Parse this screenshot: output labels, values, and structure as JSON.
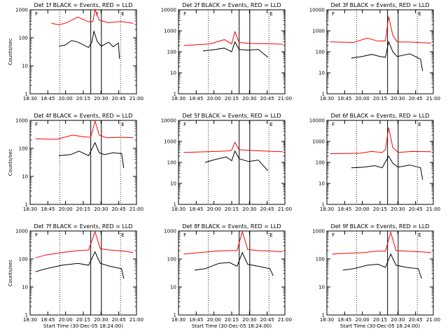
{
  "chart_data": [
    {
      "type": "line",
      "title": "Det 1f BLACK = Events, RED = LLD",
      "xlabel": "",
      "ylabel": "Counts/sec",
      "flags": [
        "F",
        "F",
        "E"
      ],
      "yscale": "log",
      "ylim": [
        1,
        1000
      ],
      "xlim": [
        "18:30",
        "21:00"
      ],
      "xticks": [
        "18:30",
        "18:45",
        "20:00",
        "20:15",
        "20:30",
        "20:45",
        "21:00"
      ],
      "yticks": [
        "1",
        "10",
        "100",
        "1000"
      ],
      "grid": false,
      "series": [
        {
          "color": "#ff0000",
          "values": [
            [
              0.2,
              330
            ],
            [
              0.27,
              290
            ],
            [
              0.34,
              340
            ],
            [
              0.45,
              550
            ],
            [
              0.55,
              370
            ],
            [
              0.59,
              380
            ],
            [
              0.61,
              1000
            ],
            [
              0.65,
              430
            ],
            [
              0.73,
              350
            ],
            [
              0.86,
              380
            ],
            [
              0.97,
              330
            ]
          ]
        },
        {
          "color": "#000000",
          "values": [
            [
              0.27,
              50
            ],
            [
              0.33,
              55
            ],
            [
              0.39,
              80
            ],
            [
              0.45,
              70
            ],
            [
              0.55,
              45
            ],
            [
              0.58,
              70
            ],
            [
              0.6,
              170
            ],
            [
              0.63,
              75
            ],
            [
              0.67,
              50
            ],
            [
              0.74,
              70
            ],
            [
              0.78,
              48
            ],
            [
              0.83,
              65
            ],
            [
              0.84,
              18
            ]
          ]
        }
      ]
    },
    {
      "type": "line",
      "title": "Det 2f BLACK = Events, RED = LLD",
      "xlabel": "",
      "ylabel": "",
      "flags": [
        "F",
        "E"
      ],
      "yscale": "log",
      "ylim": [
        1,
        10000
      ],
      "xlim": [
        "18:30",
        "21:00"
      ],
      "xticks": [
        "18:30",
        "18:45",
        "20:00",
        "20:15",
        "20:30",
        "20:45",
        "21:00"
      ],
      "yticks": [
        "1",
        "10",
        "100",
        "1000",
        "10000"
      ],
      "grid": false,
      "series": [
        {
          "color": "#ff0000",
          "values": [
            [
              0.05,
              200
            ],
            [
              0.3,
              240
            ],
            [
              0.43,
              380
            ],
            [
              0.5,
              240
            ],
            [
              0.53,
              900
            ],
            [
              0.57,
              280
            ],
            [
              0.68,
              250
            ],
            [
              0.88,
              240
            ],
            [
              0.98,
              230
            ]
          ]
        },
        {
          "color": "#000000",
          "values": [
            [
              0.23,
              110
            ],
            [
              0.35,
              130
            ],
            [
              0.43,
              150
            ],
            [
              0.5,
              100
            ],
            [
              0.53,
              300
            ],
            [
              0.57,
              130
            ],
            [
              0.65,
              120
            ],
            [
              0.75,
              130
            ],
            [
              0.84,
              55
            ]
          ]
        }
      ]
    },
    {
      "type": "line",
      "title": "Det 3f BLACK = Events, RED = LLD",
      "xlabel": "",
      "ylabel": "",
      "flags": [
        "F",
        "E"
      ],
      "yscale": "log",
      "ylim": [
        1,
        10000
      ],
      "xlim": [
        "18:30",
        "21:00"
      ],
      "xticks": [
        "18:30",
        "18:45",
        "20:00",
        "20:15",
        "20:30",
        "20:45",
        "21:00"
      ],
      "yticks": [
        "1",
        "10",
        "100",
        "1000",
        "10000"
      ],
      "grid": false,
      "series": [
        {
          "color": "#ff0000",
          "values": [
            [
              0.03,
              300
            ],
            [
              0.25,
              280
            ],
            [
              0.38,
              450
            ],
            [
              0.48,
              320
            ],
            [
              0.55,
              330
            ],
            [
              0.58,
              4800
            ],
            [
              0.62,
              600
            ],
            [
              0.66,
              300
            ],
            [
              0.8,
              290
            ],
            [
              0.98,
              260
            ]
          ]
        },
        {
          "color": "#000000",
          "values": [
            [
              0.23,
              50
            ],
            [
              0.33,
              60
            ],
            [
              0.42,
              75
            ],
            [
              0.5,
              60
            ],
            [
              0.55,
              55
            ],
            [
              0.58,
              300
            ],
            [
              0.62,
              100
            ],
            [
              0.66,
              60
            ],
            [
              0.78,
              80
            ],
            [
              0.88,
              45
            ],
            [
              0.9,
              12
            ]
          ]
        }
      ]
    },
    {
      "type": "line",
      "title": "Det 4f BLACK = Events, RED = LLD",
      "xlabel": "",
      "ylabel": "Counts/sec",
      "flags": [
        "F",
        "E"
      ],
      "yscale": "log",
      "ylim": [
        1,
        1000
      ],
      "xlim": [
        "18:30",
        "21:00"
      ],
      "xticks": [
        "18:30",
        "18:45",
        "20:00",
        "20:15",
        "20:30",
        "20:45",
        "21:00"
      ],
      "yticks": [
        "1",
        "10",
        "100",
        "1000"
      ],
      "grid": false,
      "series": [
        {
          "color": "#ff0000",
          "values": [
            [
              0.05,
              220
            ],
            [
              0.25,
              210
            ],
            [
              0.4,
              300
            ],
            [
              0.5,
              260
            ],
            [
              0.57,
              250
            ],
            [
              0.61,
              950
            ],
            [
              0.65,
              300
            ],
            [
              0.72,
              240
            ],
            [
              0.85,
              250
            ],
            [
              0.97,
              240
            ]
          ]
        },
        {
          "color": "#000000",
          "values": [
            [
              0.27,
              55
            ],
            [
              0.38,
              60
            ],
            [
              0.46,
              80
            ],
            [
              0.55,
              55
            ],
            [
              0.61,
              160
            ],
            [
              0.65,
              70
            ],
            [
              0.7,
              60
            ],
            [
              0.78,
              70
            ],
            [
              0.86,
              65
            ],
            [
              0.88,
              20
            ]
          ]
        }
      ]
    },
    {
      "type": "line",
      "title": "Det 5f BLACK = Events, RED = LLD",
      "xlabel": "",
      "ylabel": "",
      "flags": [
        "F",
        "E"
      ],
      "yscale": "log",
      "ylim": [
        1,
        10000
      ],
      "xlim": [
        "18:30",
        "21:00"
      ],
      "xticks": [
        "18:30",
        "18:45",
        "20:00",
        "20:15",
        "20:30",
        "20:45",
        "21:00"
      ],
      "yticks": [
        "1",
        "10",
        "100",
        "1000",
        "10000"
      ],
      "grid": false,
      "series": [
        {
          "color": "#ff0000",
          "values": [
            [
              0.05,
              300
            ],
            [
              0.35,
              330
            ],
            [
              0.45,
              350
            ],
            [
              0.5,
              380
            ],
            [
              0.53,
              900
            ],
            [
              0.57,
              400
            ],
            [
              0.66,
              380
            ],
            [
              0.85,
              340
            ],
            [
              0.98,
              320
            ]
          ]
        },
        {
          "color": "#000000",
          "values": [
            [
              0.25,
              100
            ],
            [
              0.35,
              140
            ],
            [
              0.45,
              180
            ],
            [
              0.5,
              120
            ],
            [
              0.53,
              350
            ],
            [
              0.57,
              150
            ],
            [
              0.66,
              110
            ],
            [
              0.75,
              130
            ],
            [
              0.84,
              40
            ]
          ]
        }
      ]
    },
    {
      "type": "line",
      "title": "Det 6f BLACK = Events, RED = LLD",
      "xlabel": "",
      "ylabel": "",
      "flags": [
        "F",
        "E"
      ],
      "yscale": "log",
      "ylim": [
        1,
        10000
      ],
      "xlim": [
        "18:30",
        "21:00"
      ],
      "xticks": [
        "18:30",
        "18:45",
        "20:00",
        "20:15",
        "20:30",
        "20:45",
        "21:00"
      ],
      "yticks": [
        "1",
        "10",
        "100",
        "1000",
        "10000"
      ],
      "grid": false,
      "series": [
        {
          "color": "#ff0000",
          "values": [
            [
              0.03,
              260
            ],
            [
              0.3,
              270
            ],
            [
              0.42,
              330
            ],
            [
              0.52,
              300
            ],
            [
              0.55,
              400
            ],
            [
              0.58,
              4500
            ],
            [
              0.62,
              500
            ],
            [
              0.67,
              300
            ],
            [
              0.8,
              330
            ],
            [
              0.98,
              320
            ]
          ]
        },
        {
          "color": "#000000",
          "values": [
            [
              0.23,
              55
            ],
            [
              0.35,
              60
            ],
            [
              0.45,
              70
            ],
            [
              0.52,
              55
            ],
            [
              0.58,
              200
            ],
            [
              0.62,
              90
            ],
            [
              0.67,
              60
            ],
            [
              0.78,
              75
            ],
            [
              0.88,
              55
            ],
            [
              0.9,
              15
            ]
          ]
        }
      ]
    },
    {
      "type": "line",
      "title": "Det 7f BLACK = Events, RED = LLD",
      "xlabel": "Start Time (30-Dec-05 18:24:00)",
      "ylabel": "Counts/sec",
      "flags": [
        "F",
        "E"
      ],
      "yscale": "log",
      "ylim": [
        1,
        1000
      ],
      "xlim": [
        "18:30",
        "21:00"
      ],
      "xticks": [
        "18:30",
        "18:45",
        "20:00",
        "20:15",
        "20:30",
        "20:45",
        "21:00"
      ],
      "yticks": [
        "1",
        "10",
        "100",
        "1000"
      ],
      "grid": false,
      "series": [
        {
          "color": "#ff0000",
          "values": [
            [
              0.05,
              110
            ],
            [
              0.15,
              140
            ],
            [
              0.3,
              170
            ],
            [
              0.45,
              200
            ],
            [
              0.55,
              210
            ],
            [
              0.61,
              950
            ],
            [
              0.66,
              230
            ],
            [
              0.75,
              210
            ],
            [
              0.88,
              190
            ],
            [
              0.97,
              170
            ]
          ]
        },
        {
          "color": "#000000",
          "values": [
            [
              0.05,
              35
            ],
            [
              0.15,
              45
            ],
            [
              0.3,
              60
            ],
            [
              0.45,
              70
            ],
            [
              0.55,
              60
            ],
            [
              0.61,
              180
            ],
            [
              0.66,
              70
            ],
            [
              0.75,
              55
            ],
            [
              0.86,
              45
            ],
            [
              0.88,
              20
            ]
          ]
        }
      ]
    },
    {
      "type": "line",
      "title": "Det 8f BLACK = Events, RED = LLD",
      "xlabel": "Start Time (30-Dec-05 18:24:00)",
      "ylabel": "",
      "flags": [
        "F",
        "E"
      ],
      "yscale": "log",
      "ylim": [
        1,
        1000
      ],
      "xlim": [
        "18:30",
        "21:00"
      ],
      "xticks": [
        "18:30",
        "18:45",
        "20:00",
        "20:15",
        "20:30",
        "20:45",
        "21:00"
      ],
      "yticks": [
        "1",
        "10",
        "100",
        "1000"
      ],
      "grid": false,
      "series": [
        {
          "color": "#ff0000",
          "values": [
            [
              0.05,
              150
            ],
            [
              0.2,
              170
            ],
            [
              0.35,
              190
            ],
            [
              0.47,
              200
            ],
            [
              0.55,
              200
            ],
            [
              0.6,
              950
            ],
            [
              0.65,
              220
            ],
            [
              0.75,
              200
            ],
            [
              0.88,
              190
            ],
            [
              0.98,
              180
            ]
          ]
        },
        {
          "color": "#000000",
          "values": [
            [
              0.15,
              40
            ],
            [
              0.25,
              45
            ],
            [
              0.38,
              70
            ],
            [
              0.48,
              75
            ],
            [
              0.55,
              55
            ],
            [
              0.6,
              170
            ],
            [
              0.65,
              65
            ],
            [
              0.75,
              55
            ],
            [
              0.86,
              45
            ],
            [
              0.89,
              25
            ]
          ]
        }
      ]
    },
    {
      "type": "line",
      "title": "Det 9f BLACK = Events, RED = LLD",
      "xlabel": "Start Time (30-Dec-05 18:24:00)",
      "ylabel": "",
      "flags": [
        "F",
        "E"
      ],
      "yscale": "log",
      "ylim": [
        1,
        1000
      ],
      "xlim": [
        "18:30",
        "21:00"
      ],
      "xticks": [
        "18:30",
        "18:45",
        "20:00",
        "20:15",
        "20:30",
        "20:45",
        "21:00"
      ],
      "yticks": [
        "1",
        "10",
        "100",
        "1000"
      ],
      "grid": false,
      "series": [
        {
          "color": "#ff0000",
          "values": [
            [
              0.05,
              150
            ],
            [
              0.2,
              160
            ],
            [
              0.35,
              170
            ],
            [
              0.47,
              190
            ],
            [
              0.55,
              190
            ],
            [
              0.6,
              900
            ],
            [
              0.65,
              200
            ],
            [
              0.75,
              190
            ],
            [
              0.88,
              180
            ],
            [
              0.98,
              170
            ]
          ]
        },
        {
          "color": "#000000",
          "values": [
            [
              0.15,
              40
            ],
            [
              0.25,
              45
            ],
            [
              0.38,
              60
            ],
            [
              0.48,
              65
            ],
            [
              0.55,
              50
            ],
            [
              0.6,
              150
            ],
            [
              0.65,
              60
            ],
            [
              0.75,
              50
            ],
            [
              0.86,
              45
            ],
            [
              0.89,
              20
            ]
          ]
        }
      ]
    }
  ]
}
